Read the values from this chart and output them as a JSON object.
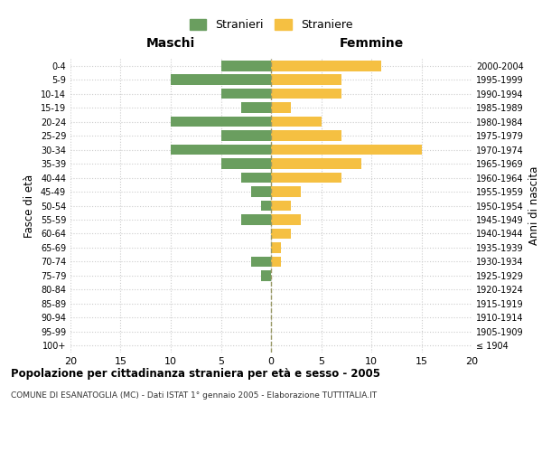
{
  "age_groups": [
    "100+",
    "95-99",
    "90-94",
    "85-89",
    "80-84",
    "75-79",
    "70-74",
    "65-69",
    "60-64",
    "55-59",
    "50-54",
    "45-49",
    "40-44",
    "35-39",
    "30-34",
    "25-29",
    "20-24",
    "15-19",
    "10-14",
    "5-9",
    "0-4"
  ],
  "birth_years": [
    "≤ 1904",
    "1905-1909",
    "1910-1914",
    "1915-1919",
    "1920-1924",
    "1925-1929",
    "1930-1934",
    "1935-1939",
    "1940-1944",
    "1945-1949",
    "1950-1954",
    "1955-1959",
    "1960-1964",
    "1965-1969",
    "1970-1974",
    "1975-1979",
    "1980-1984",
    "1985-1989",
    "1990-1994",
    "1995-1999",
    "2000-2004"
  ],
  "maschi": [
    0,
    0,
    0,
    0,
    0,
    1,
    2,
    0,
    0,
    3,
    1,
    2,
    3,
    5,
    10,
    5,
    10,
    3,
    5,
    10,
    5
  ],
  "femmine": [
    0,
    0,
    0,
    0,
    0,
    0,
    1,
    1,
    2,
    3,
    2,
    3,
    7,
    9,
    15,
    7,
    5,
    2,
    7,
    7,
    11
  ],
  "male_color": "#6a9e5f",
  "female_color": "#f5c042",
  "title": "Popolazione per cittadinanza straniera per età e sesso - 2005",
  "subtitle": "COMUNE DI ESANATOGLIA (MC) - Dati ISTAT 1° gennaio 2005 - Elaborazione TUTTITALIA.IT",
  "ylabel_left": "Fasce di età",
  "ylabel_right": "Anni di nascita",
  "xlim": 20,
  "legend_stranieri": "Stranieri",
  "legend_straniere": "Straniere",
  "maschi_label": "Maschi",
  "femmine_label": "Femmine",
  "bg_color": "#ffffff",
  "grid_color": "#cccccc",
  "bar_height": 0.75
}
